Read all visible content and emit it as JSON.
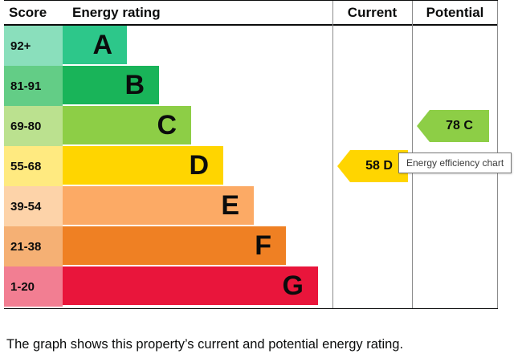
{
  "header": {
    "score": "Score",
    "energy_rating": "Energy rating",
    "current": "Current",
    "potential": "Potential"
  },
  "chart_data": {
    "type": "bar",
    "title": "Energy efficiency chart",
    "bands": [
      {
        "score": "92+",
        "letter": "A",
        "bar_color": "#2dc78a",
        "score_cell_color": "#8adfbc"
      },
      {
        "score": "81-91",
        "letter": "B",
        "bar_color": "#19b459",
        "score_cell_color": "#63cd86"
      },
      {
        "score": "69-80",
        "letter": "C",
        "bar_color": "#8dce46",
        "score_cell_color": "#bbe18f"
      },
      {
        "score": "55-68",
        "letter": "D",
        "bar_color": "#ffd500",
        "score_cell_color": "#ffea80"
      },
      {
        "score": "39-54",
        "letter": "E",
        "bar_color": "#fcaa65",
        "score_cell_color": "#fdd3a9"
      },
      {
        "score": "21-38",
        "letter": "F",
        "bar_color": "#ef8023",
        "score_cell_color": "#f5b074"
      },
      {
        "score": "1-20",
        "letter": "G",
        "bar_color": "#e9153b",
        "score_cell_color": "#f27e92"
      }
    ],
    "current": {
      "value": "58",
      "letter": "D",
      "color": "#ffd500"
    },
    "potential": {
      "value": "78",
      "letter": "C",
      "color": "#8dce46"
    }
  },
  "tooltip": {
    "text": "Energy efficiency chart"
  },
  "caption": "The graph shows this property’s current and potential energy rating."
}
